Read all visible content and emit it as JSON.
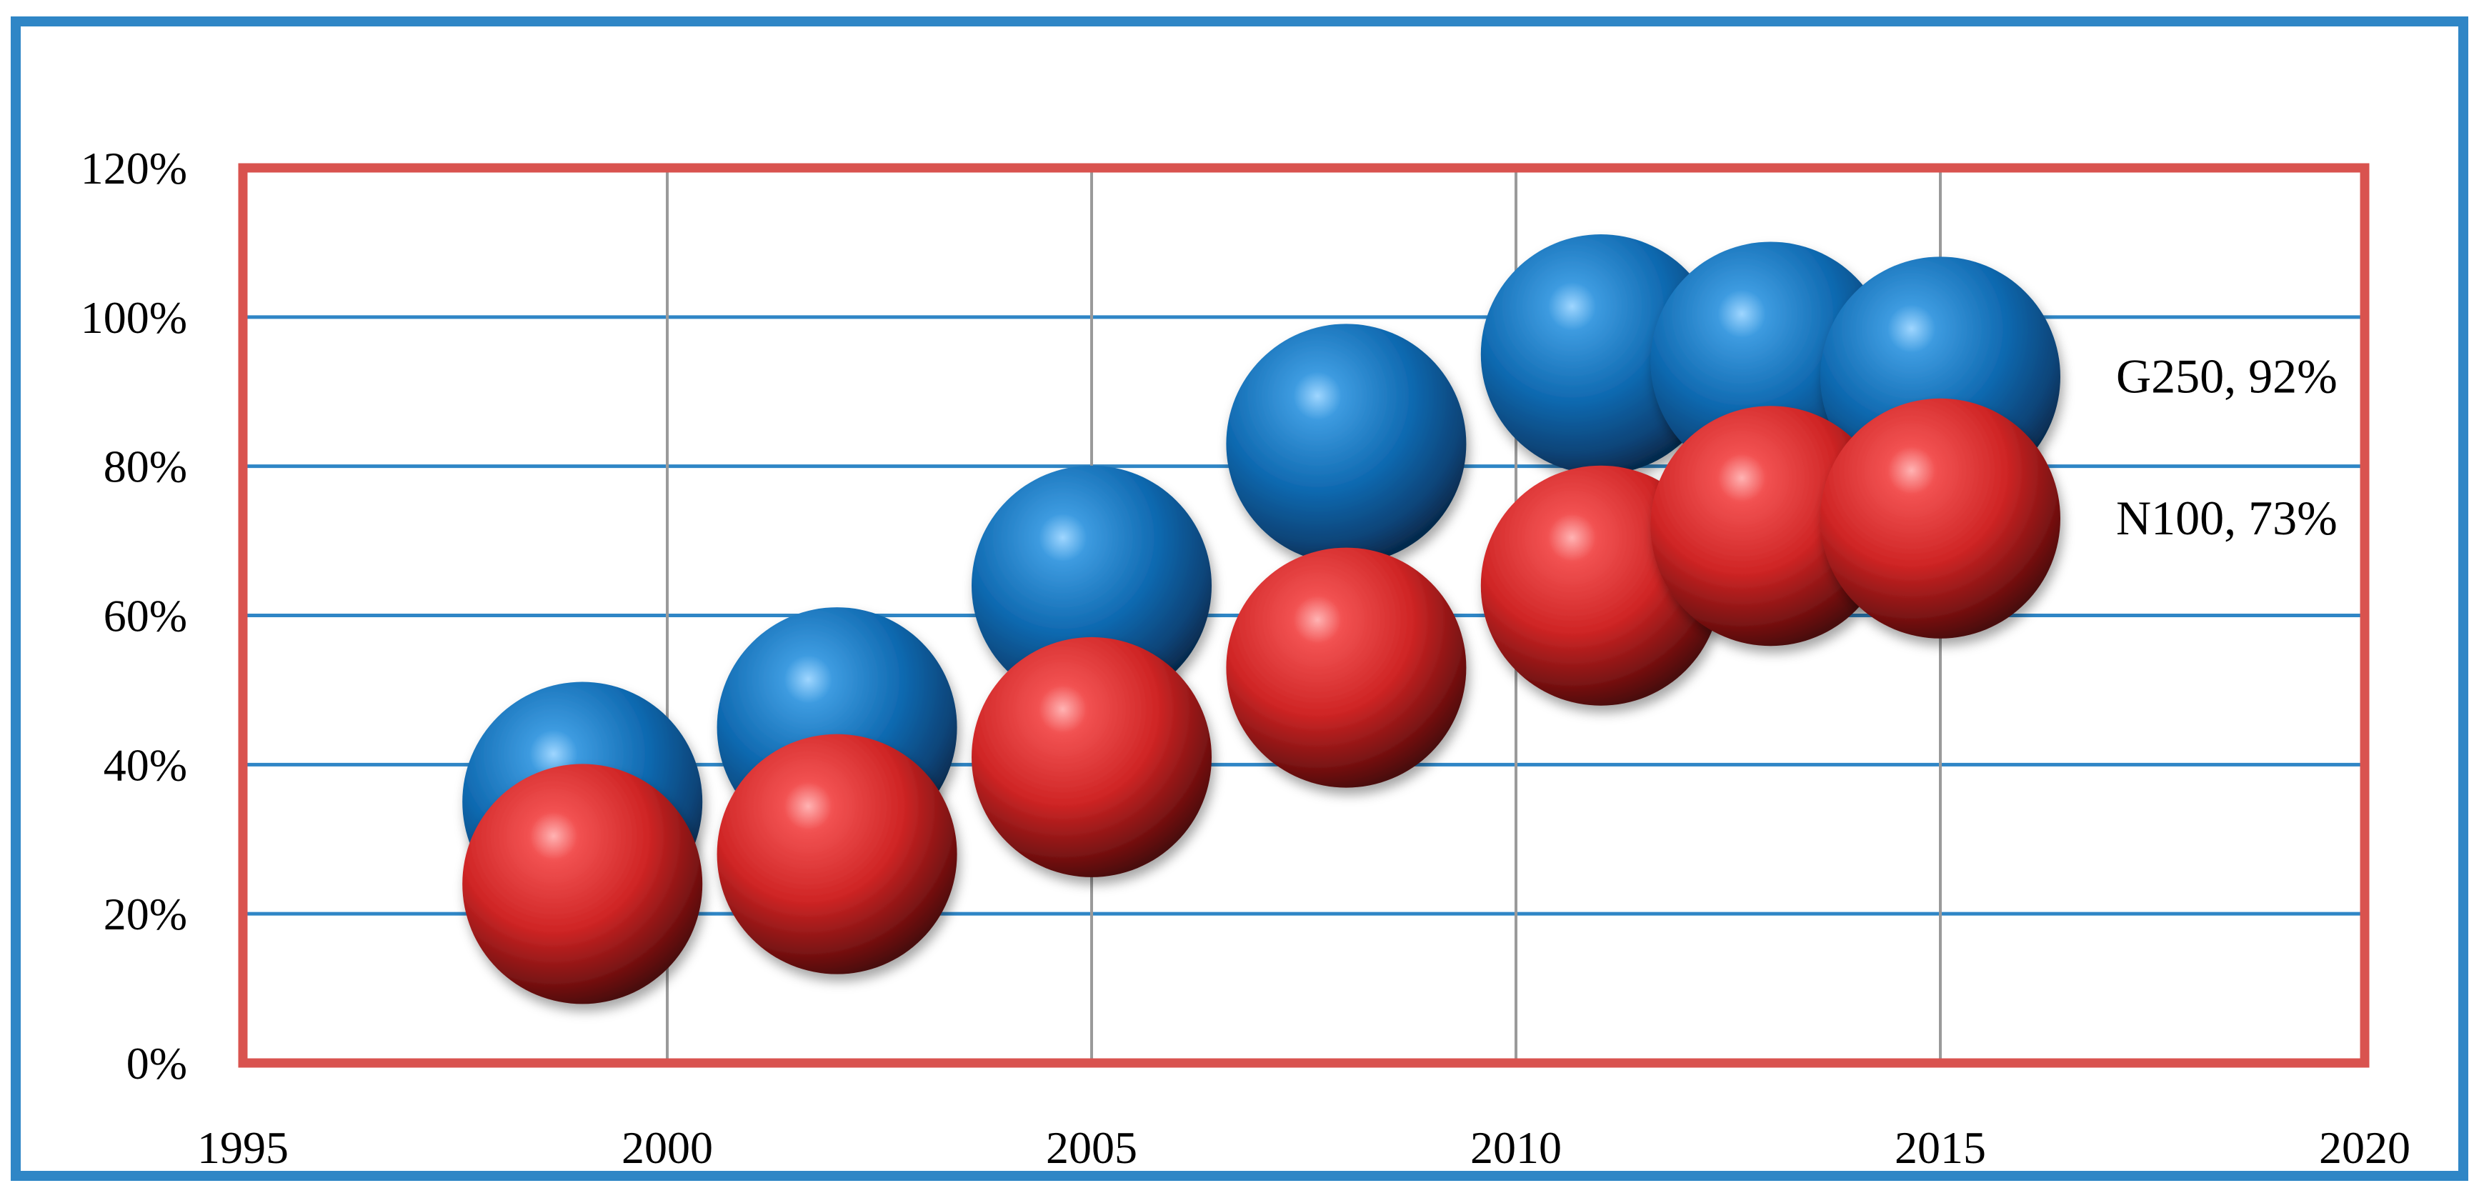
{
  "chart_data": {
    "type": "scatter",
    "title": "",
    "xlabel": "",
    "ylabel": "",
    "xlim": [
      1995,
      2020
    ],
    "ylim": [
      0,
      1.2
    ],
    "x_ticks": [
      1995,
      2000,
      2005,
      2010,
      2015,
      2020
    ],
    "x_tick_labels": [
      "1995",
      "2000",
      "2005",
      "2010",
      "2015",
      "2020"
    ],
    "y_ticks": [
      0,
      0.2,
      0.4,
      0.6,
      0.8,
      1.0,
      1.2
    ],
    "y_tick_labels": [
      "0%",
      "20%",
      "40%",
      "60%",
      "80%",
      "100%",
      "120%"
    ],
    "grid": true,
    "series": [
      {
        "name": "G250",
        "color": "#1a78c2",
        "x": [
          1999,
          2002,
          2005,
          2008,
          2011,
          2013,
          2015
        ],
        "y": [
          0.35,
          0.45,
          0.64,
          0.83,
          0.95,
          0.94,
          0.92
        ],
        "end_label": "G250, 92%"
      },
      {
        "name": "N100",
        "color": "#e53b3b",
        "x": [
          1999,
          2002,
          2005,
          2008,
          2011,
          2013,
          2015
        ],
        "y": [
          0.24,
          0.28,
          0.41,
          0.53,
          0.64,
          0.72,
          0.73
        ],
        "end_label": "N100, 73%"
      }
    ],
    "colors": {
      "outer_border": "#2f86c6",
      "plot_border": "#d9534f",
      "h_grid": "#2f86c6",
      "v_grid": "#9a9a9a"
    }
  }
}
